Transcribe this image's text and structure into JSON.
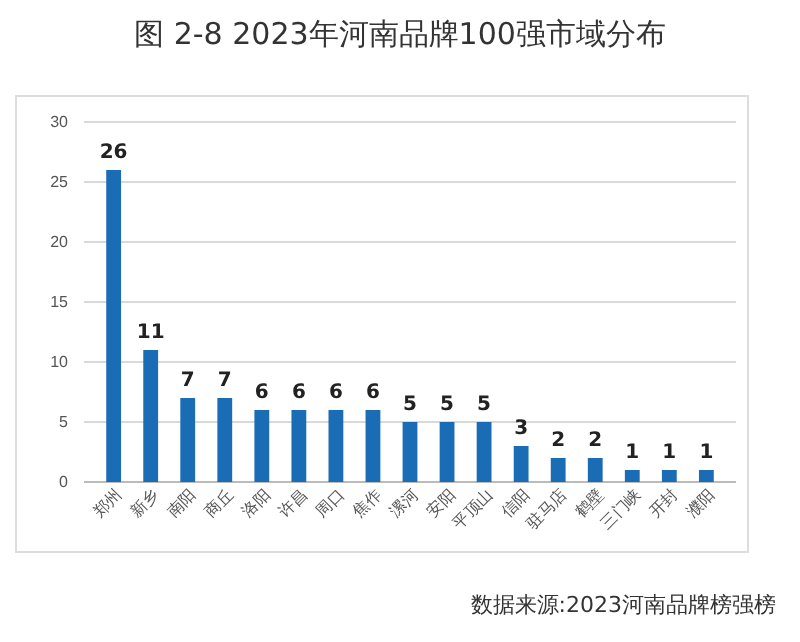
{
  "chart_data": {
    "type": "bar",
    "title": "图 2-8  2023年河南品牌100强市域分布",
    "categories": [
      "郑州",
      "新乡",
      "南阳",
      "商丘",
      "洛阳",
      "许昌",
      "周口",
      "焦作",
      "漯河",
      "安阳",
      "平顶山",
      "信阳",
      "驻马店",
      "鹤壁",
      "三门峡",
      "开封",
      "濮阳"
    ],
    "values": [
      26,
      11,
      7,
      7,
      6,
      6,
      6,
      6,
      5,
      5,
      5,
      3,
      2,
      2,
      1,
      1,
      1
    ],
    "color": "#1a6db5",
    "ylim": [
      0,
      30
    ],
    "yticks": [
      0,
      5,
      10,
      15,
      20,
      25,
      30
    ],
    "grid": "y",
    "data_labels": true,
    "annotations": [
      "数据来源:2023河南品牌榜强榜"
    ]
  }
}
